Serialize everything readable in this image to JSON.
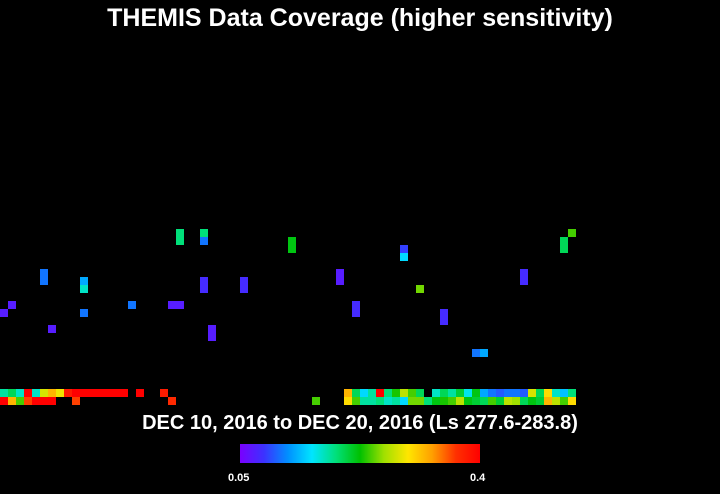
{
  "title": "THEMIS Data Coverage (higher sensitivity)",
  "date_range": "DEC 10, 2016 to DEC 20, 2016 (Ls 277.6-283.8)",
  "colorbar": {
    "min_label": "0.05",
    "max_label": "0.4",
    "min": 0.05,
    "max": 0.4,
    "colors": [
      "#7a00ff",
      "#3c32ff",
      "#0090ff",
      "#00e5ff",
      "#00e07a",
      "#00c000",
      "#a0e000",
      "#ffe600",
      "#ffa000",
      "#ff3000",
      "#ff0000"
    ]
  },
  "map_background": "#000000",
  "coverage_cells": [
    {
      "col": 0,
      "row": 38,
      "value": 0.07
    },
    {
      "col": 1,
      "row": 37,
      "value": 0.07
    },
    {
      "col": 5,
      "row": 33,
      "value": 0.11
    },
    {
      "col": 5,
      "row": 34,
      "value": 0.11
    },
    {
      "col": 6,
      "row": 40,
      "value": 0.07
    },
    {
      "col": 10,
      "row": 34,
      "value": 0.13
    },
    {
      "col": 10,
      "row": 35,
      "value": 0.17
    },
    {
      "col": 10,
      "row": 38,
      "value": 0.11
    },
    {
      "col": 16,
      "row": 37,
      "value": 0.11
    },
    {
      "col": 21,
      "row": 37,
      "value": 0.07
    },
    {
      "col": 22,
      "row": 37,
      "value": 0.07
    },
    {
      "col": 22,
      "row": 28,
      "value": 0.19
    },
    {
      "col": 22,
      "row": 29,
      "value": 0.19
    },
    {
      "col": 25,
      "row": 28,
      "value": 0.19
    },
    {
      "col": 25,
      "row": 29,
      "value": 0.11
    },
    {
      "col": 25,
      "row": 34,
      "value": 0.08
    },
    {
      "col": 25,
      "row": 35,
      "value": 0.08
    },
    {
      "col": 26,
      "row": 40,
      "value": 0.07
    },
    {
      "col": 26,
      "row": 41,
      "value": 0.07
    },
    {
      "col": 30,
      "row": 34,
      "value": 0.08
    },
    {
      "col": 30,
      "row": 35,
      "value": 0.08
    },
    {
      "col": 36,
      "row": 29,
      "value": 0.22
    },
    {
      "col": 36,
      "row": 30,
      "value": 0.22
    },
    {
      "col": 42,
      "row": 33,
      "value": 0.07
    },
    {
      "col": 42,
      "row": 34,
      "value": 0.07
    },
    {
      "col": 44,
      "row": 37,
      "value": 0.08
    },
    {
      "col": 44,
      "row": 38,
      "value": 0.08
    },
    {
      "col": 50,
      "row": 30,
      "value": 0.09
    },
    {
      "col": 50,
      "row": 31,
      "value": 0.15
    },
    {
      "col": 52,
      "row": 35,
      "value": 0.25
    },
    {
      "col": 55,
      "row": 38,
      "value": 0.08
    },
    {
      "col": 55,
      "row": 39,
      "value": 0.08
    },
    {
      "col": 59,
      "row": 43,
      "value": 0.11
    },
    {
      "col": 60,
      "row": 43,
      "value": 0.13
    },
    {
      "col": 65,
      "row": 33,
      "value": 0.08
    },
    {
      "col": 65,
      "row": 34,
      "value": 0.08
    },
    {
      "col": 70,
      "row": 29,
      "value": 0.2
    },
    {
      "col": 70,
      "row": 30,
      "value": 0.2
    },
    {
      "col": 71,
      "row": 28,
      "value": 0.24
    }
  ],
  "bottom_rows": [
    {
      "start_col": 0,
      "values": [
        0.18,
        0.2,
        0.17,
        0.4,
        0.17,
        0.28,
        0.32,
        0.29,
        0.38,
        0.4,
        0.4,
        0.4,
        0.4,
        0.4,
        0.4,
        0.4,
        null,
        0.4,
        null,
        null,
        0.38,
        null
      ]
    },
    {
      "start_col": 43,
      "values": [
        0.32,
        0.2,
        0.15,
        0.18,
        0.4,
        0.19,
        0.23,
        0.27,
        0.24,
        0.2,
        null,
        0.17,
        0.2,
        0.18,
        0.21,
        0.16,
        0.22,
        0.13,
        0.11,
        0.1,
        0.11,
        0.11,
        0.1,
        0.28,
        0.2,
        0.3,
        0.17,
        0.14,
        0.19
      ]
    },
    {
      "start_col": 0,
      "values": [
        0.4,
        0.32,
        0.24,
        0.36,
        0.4,
        0.4,
        0.4,
        null,
        null,
        0.36,
        null,
        null,
        null,
        null,
        null,
        null,
        null,
        null,
        null,
        null,
        null,
        0.37
      ]
    },
    {
      "start_col": 39,
      "values": [
        0.24,
        null,
        null,
        null,
        0.3,
        0.24,
        0.18,
        0.18,
        0.19,
        0.17,
        0.18,
        0.15,
        0.25,
        0.25,
        0.19,
        0.22,
        0.23,
        0.24,
        0.27,
        0.22,
        0.21,
        0.2,
        0.24,
        0.21,
        0.27,
        0.26,
        0.2,
        0.22,
        0.21,
        0.32,
        0.27,
        0.24,
        0.3
      ]
    }
  ]
}
